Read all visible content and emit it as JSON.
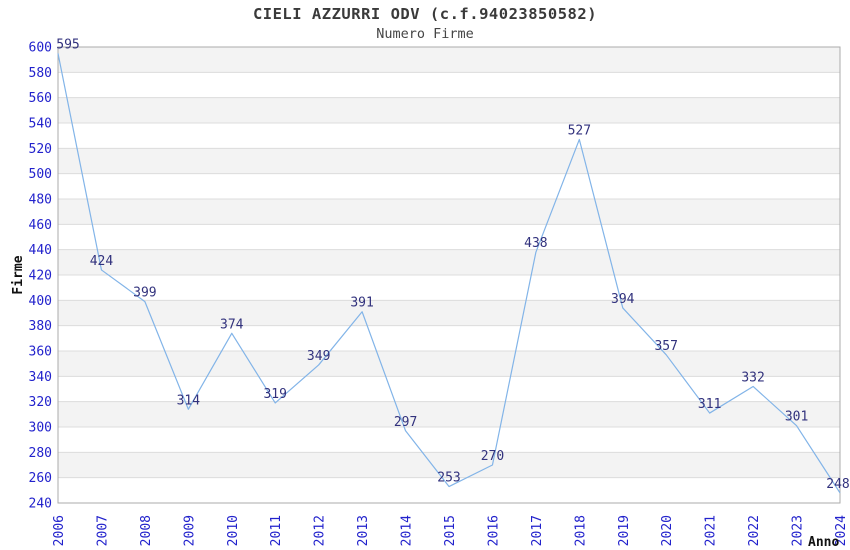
{
  "chart_data": {
    "type": "line",
    "title": "CIELI AZZURRI ODV (c.f.94023850582)",
    "subtitle": "Numero Firme",
    "xlabel": "Anno",
    "ylabel": "Firme",
    "categories": [
      "2006",
      "2007",
      "2008",
      "2009",
      "2010",
      "2011",
      "2012",
      "2013",
      "2014",
      "2015",
      "2016",
      "2017",
      "2018",
      "2019",
      "2020",
      "2021",
      "2022",
      "2023",
      "2024"
    ],
    "values": [
      595,
      424,
      399,
      314,
      374,
      319,
      349,
      391,
      297,
      253,
      270,
      438,
      527,
      394,
      357,
      311,
      332,
      301,
      248
    ],
    "ylim": [
      240,
      600
    ],
    "ytick_step": 20,
    "grid": "horizontal-gridlines-with-alternating-bands",
    "legend": "none",
    "data_labels": true,
    "colors": {
      "line": "#82b4e8",
      "axis_tick_label": "#2222cc",
      "data_label": "#32327d",
      "band_gray": "#f3f3f3",
      "band_white": "#ffffff",
      "gridline": "#dcdcdc",
      "plot_border": "#ababab",
      "axis_title": "#111111",
      "title_color": "#3a3a3a"
    }
  }
}
